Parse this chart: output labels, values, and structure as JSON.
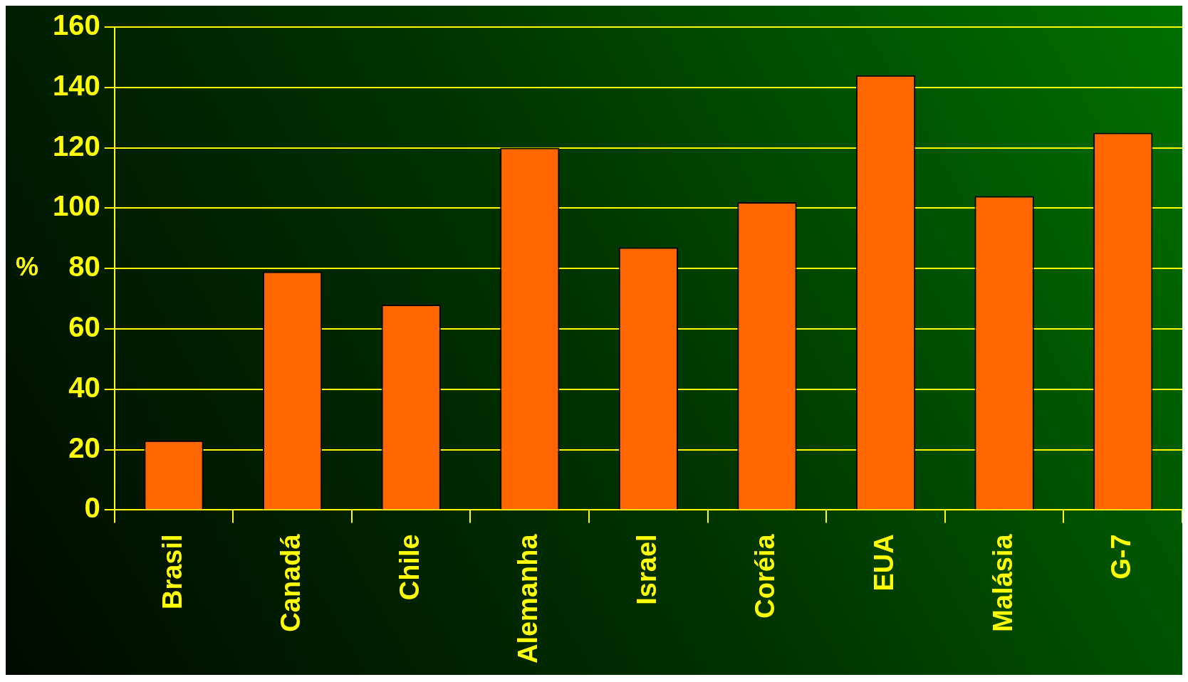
{
  "chart_data": {
    "type": "bar",
    "ylabel": "%",
    "categories": [
      "Brasil",
      "Canadá",
      "Chile",
      "Alemanha",
      "Israel",
      "Coréia",
      "EUA",
      "Malásia",
      "G-7"
    ],
    "values": [
      23,
      79,
      68,
      120,
      87,
      102,
      144,
      104,
      125
    ],
    "color": "#ff6600",
    "ylim": [
      0,
      160
    ],
    "yticks": [
      0,
      20,
      40,
      60,
      80,
      100,
      120,
      140,
      160
    ],
    "grid": "y",
    "legend": false
  }
}
